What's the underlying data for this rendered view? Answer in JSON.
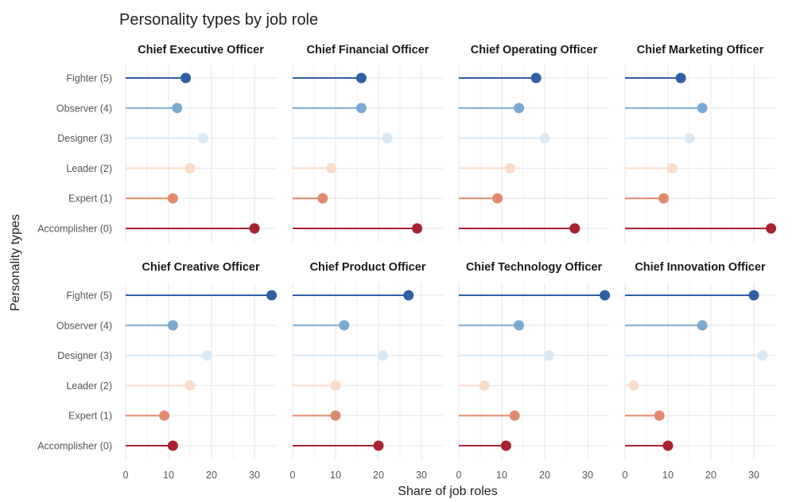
{
  "chart_data": {
    "type": "lollipop",
    "title": "Personality types by job role",
    "xlabel": "Share of job roles",
    "ylabel": "Personality types",
    "xlim": [
      0,
      35
    ],
    "xticks": [
      0,
      10,
      20,
      30
    ],
    "categories": [
      "Fighter (5)",
      "Observer (4)",
      "Designer (3)",
      "Leader (2)",
      "Expert (1)",
      "Accomplisher (0)"
    ],
    "colors": [
      "#2f5fa5",
      "#7aaad2",
      "#d9e8f5",
      "#fbdcc9",
      "#e08a6b",
      "#a8232f"
    ],
    "facets": [
      {
        "name": "Chief Executive Officer",
        "values": [
          14,
          12,
          18,
          15,
          11,
          30
        ]
      },
      {
        "name": "Chief Financial Officer",
        "values": [
          16,
          16,
          22,
          9,
          7,
          29
        ]
      },
      {
        "name": "Chief Operating Officer",
        "values": [
          18,
          14,
          20,
          12,
          9,
          27
        ]
      },
      {
        "name": "Chief Marketing Officer",
        "values": [
          13,
          18,
          15,
          11,
          9,
          34
        ]
      },
      {
        "name": "Chief Creative Officer",
        "values": [
          34,
          11,
          19,
          15,
          9,
          11
        ]
      },
      {
        "name": "Chief Product Officer",
        "values": [
          27,
          12,
          21,
          10,
          10,
          20
        ]
      },
      {
        "name": "Chief Technology Officer",
        "values": [
          34,
          14,
          21,
          6,
          13,
          11
        ]
      },
      {
        "name": "Chief Innovation Officer",
        "values": [
          30,
          18,
          32,
          2,
          8,
          10
        ]
      }
    ]
  }
}
